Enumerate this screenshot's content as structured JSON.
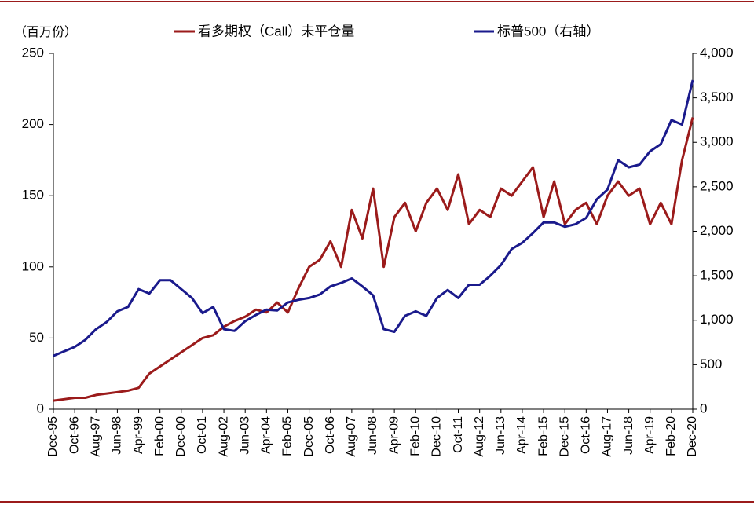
{
  "chart_data": {
    "type": "line",
    "y_label": "（百万份）",
    "categories": [
      "Dec-95",
      null,
      "Oct-96",
      null,
      "Aug-97",
      null,
      "Jun-98",
      null,
      "Apr-99",
      null,
      "Feb-00",
      null,
      "Dec-00",
      null,
      "Oct-01",
      null,
      "Aug-02",
      null,
      "Jun-03",
      null,
      "Apr-04",
      null,
      "Feb-05",
      null,
      "Dec-05",
      null,
      "Oct-06",
      null,
      "Aug-07",
      null,
      "Jun-08",
      null,
      "Apr-09",
      null,
      "Feb-10",
      null,
      "Dec-10",
      null,
      "Oct-11",
      null,
      "Aug-12",
      null,
      "Jun-13",
      null,
      "Apr-14",
      null,
      "Feb-15",
      null,
      "Dec-15",
      null,
      "Oct-16",
      null,
      "Aug-17",
      null,
      "Jun-18",
      null,
      "Apr-19",
      null,
      "Feb-20",
      null,
      "Dec-20"
    ],
    "series": [
      {
        "name": "看多期权（Call）未平仓量",
        "color": "#9b1b1b",
        "axis": "y",
        "values": [
          6,
          7,
          8,
          8,
          10,
          11,
          12,
          13,
          15,
          25,
          30,
          35,
          40,
          45,
          50,
          52,
          58,
          62,
          65,
          70,
          68,
          75,
          68,
          85,
          100,
          105,
          118,
          100,
          140,
          120,
          155,
          100,
          135,
          145,
          125,
          145,
          155,
          140,
          165,
          130,
          140,
          135,
          155,
          150,
          160,
          170,
          135,
          160,
          130,
          140,
          145,
          130,
          150,
          160,
          150,
          155,
          130,
          145,
          130,
          175,
          205
        ]
      },
      {
        "name": "标普500（右轴）",
        "color": "#1a1a8c",
        "axis": "y2",
        "values": [
          600,
          650,
          700,
          780,
          900,
          980,
          1100,
          1150,
          1350,
          1300,
          1450,
          1450,
          1350,
          1250,
          1080,
          1150,
          900,
          880,
          990,
          1060,
          1120,
          1110,
          1200,
          1230,
          1250,
          1290,
          1380,
          1420,
          1470,
          1380,
          1280,
          900,
          870,
          1050,
          1100,
          1050,
          1250,
          1340,
          1250,
          1400,
          1400,
          1500,
          1620,
          1800,
          1870,
          1980,
          2100,
          2100,
          2050,
          2080,
          2150,
          2360,
          2470,
          2800,
          2720,
          2750,
          2900,
          2980,
          3250,
          3200,
          3700
        ]
      }
    ],
    "ylim": [
      0,
      250
    ],
    "yticks": [
      0,
      50,
      100,
      150,
      200,
      250
    ],
    "y2lim": [
      0,
      4000
    ],
    "y2ticks": [
      0,
      500,
      {
        "value": 1000,
        "label": "1,000"
      },
      {
        "value": 1500,
        "label": "1,500"
      },
      {
        "value": 2000,
        "label": "2,000"
      },
      {
        "value": 2500,
        "label": "2,500"
      },
      {
        "value": 3000,
        "label": "3,000"
      },
      {
        "value": 3500,
        "label": "3,500"
      },
      {
        "value": 4000,
        "label": "4,000"
      }
    ],
    "legend": "top"
  }
}
